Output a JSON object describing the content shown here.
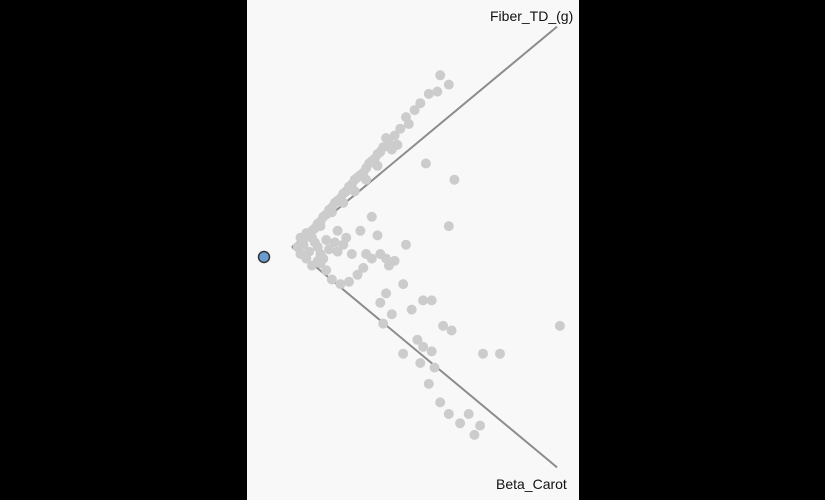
{
  "chart_data": {
    "type": "scatter",
    "projection": "biplot",
    "axes": [
      {
        "name": "Fiber_TD_(g)",
        "direction": "upper-right"
      },
      {
        "name": "Beta_Carot",
        "direction": "lower-right"
      }
    ],
    "x_range": [
      0,
      1
    ],
    "y_range": [
      -1,
      1
    ],
    "colors": {
      "points": "#cccccc",
      "axis": "#8c8c8c",
      "highlight_fill": "#6a9bd1",
      "highlight_stroke": "#333333"
    },
    "highlighted": {
      "x": 0.0,
      "y": 0.0
    },
    "points": [
      [
        0.52,
        0.74
      ],
      [
        0.55,
        0.7
      ],
      [
        0.48,
        0.66
      ],
      [
        0.45,
        0.62
      ],
      [
        0.51,
        0.67
      ],
      [
        0.43,
        0.59
      ],
      [
        0.4,
        0.56
      ],
      [
        0.41,
        0.53
      ],
      [
        0.38,
        0.51
      ],
      [
        0.36,
        0.48
      ],
      [
        0.34,
        0.45
      ],
      [
        0.32,
        0.43
      ],
      [
        0.3,
        0.4
      ],
      [
        0.28,
        0.37
      ],
      [
        0.26,
        0.34
      ],
      [
        0.24,
        0.31
      ],
      [
        0.22,
        0.29
      ],
      [
        0.2,
        0.26
      ],
      [
        0.18,
        0.23
      ],
      [
        0.16,
        0.2
      ],
      [
        0.14,
        0.17
      ],
      [
        0.12,
        0.14
      ],
      [
        0.1,
        0.11
      ],
      [
        0.08,
        0.08
      ],
      [
        0.06,
        0.05
      ],
      [
        0.04,
        0.03
      ],
      [
        0.33,
        0.47
      ],
      [
        0.31,
        0.41
      ],
      [
        0.29,
        0.38
      ],
      [
        0.27,
        0.36
      ],
      [
        0.25,
        0.32
      ],
      [
        0.23,
        0.3
      ],
      [
        0.21,
        0.27
      ],
      [
        0.19,
        0.24
      ],
      [
        0.17,
        0.21
      ],
      [
        0.15,
        0.19
      ],
      [
        0.13,
        0.16
      ],
      [
        0.11,
        0.13
      ],
      [
        0.09,
        0.1
      ],
      [
        0.07,
        0.07
      ],
      [
        0.05,
        0.06
      ],
      [
        0.03,
        0.04
      ],
      [
        0.35,
        0.42
      ],
      [
        0.37,
        0.44
      ],
      [
        0.3,
        0.35
      ],
      [
        0.26,
        0.29
      ],
      [
        0.22,
        0.24
      ],
      [
        0.18,
        0.19
      ],
      [
        0.14,
        0.15
      ],
      [
        0.1,
        0.09
      ],
      [
        0.47,
        0.36
      ],
      [
        0.57,
        0.29
      ],
      [
        0.55,
        0.09
      ],
      [
        0.28,
        0.13
      ],
      [
        0.3,
        0.05
      ],
      [
        0.24,
        0.07
      ],
      [
        0.16,
        0.07
      ],
      [
        0.18,
        0.01
      ],
      [
        0.21,
        -0.03
      ],
      [
        0.26,
        -0.03
      ],
      [
        0.31,
        -0.03
      ],
      [
        0.33,
        -0.05
      ],
      [
        0.36,
        -0.06
      ],
      [
        0.34,
        -0.08
      ],
      [
        0.4,
        0.01
      ],
      [
        0.28,
        -0.05
      ],
      [
        0.25,
        -0.09
      ],
      [
        0.23,
        -0.12
      ],
      [
        0.2,
        -0.15
      ],
      [
        0.17,
        -0.16
      ],
      [
        0.12,
        -0.1
      ],
      [
        0.09,
        -0.06
      ],
      [
        0.07,
        -0.08
      ],
      [
        0.14,
        -0.14
      ],
      [
        0.39,
        -0.16
      ],
      [
        0.46,
        -0.23
      ],
      [
        0.49,
        -0.23
      ],
      [
        0.42,
        -0.27
      ],
      [
        0.33,
        -0.2
      ],
      [
        0.31,
        -0.24
      ],
      [
        0.35,
        -0.29
      ],
      [
        0.32,
        -0.33
      ],
      [
        0.53,
        -0.34
      ],
      [
        0.56,
        -0.36
      ],
      [
        0.44,
        -0.4
      ],
      [
        0.46,
        -0.43
      ],
      [
        0.49,
        -0.45
      ],
      [
        0.39,
        -0.46
      ],
      [
        0.45,
        -0.5
      ],
      [
        0.5,
        -0.52
      ],
      [
        0.48,
        -0.59
      ],
      [
        0.73,
        -0.46
      ],
      [
        0.67,
        -0.46
      ],
      [
        0.94,
        -0.34
      ],
      [
        0.52,
        -0.67
      ],
      [
        0.55,
        -0.72
      ],
      [
        0.62,
        -0.72
      ],
      [
        0.59,
        -0.76
      ],
      [
        0.66,
        -0.77
      ],
      [
        0.64,
        -0.81
      ],
      [
        0.06,
        -0.02
      ],
      [
        0.1,
        -0.03
      ],
      [
        0.04,
        0.01
      ],
      [
        0.08,
        0.02
      ],
      [
        0.12,
        0.03
      ],
      [
        0.15,
        0.02
      ],
      [
        0.03,
        -0.03
      ],
      [
        0.11,
        -0.05
      ],
      [
        0.13,
        -0.01
      ],
      [
        0.19,
        0.04
      ],
      [
        0.05,
        -0.05
      ],
      [
        0.02,
        0.0
      ],
      [
        0.09,
        0.0
      ],
      [
        0.07,
        0.04
      ],
      [
        0.16,
        -0.02
      ],
      [
        0.1,
        -0.07
      ]
    ]
  }
}
